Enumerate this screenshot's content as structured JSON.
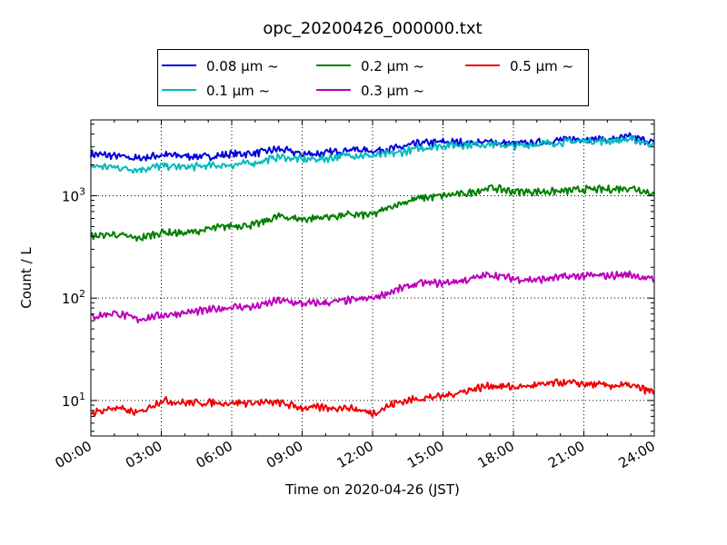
{
  "chart_data": {
    "type": "line",
    "title": "opc_20200426_000000.txt",
    "xlabel": "Time on 2020-04-26 (JST)",
    "ylabel": "Count / L",
    "yscale": "log",
    "ylim": [
      4.5,
      5500
    ],
    "xlim": [
      "00:00",
      "24:00"
    ],
    "x_ticks": [
      "00:00",
      "03:00",
      "06:00",
      "09:00",
      "12:00",
      "15:00",
      "18:00",
      "21:00",
      "24:00"
    ],
    "y_ticks": [
      {
        "value": 10,
        "base": "10",
        "exp": "1"
      },
      {
        "value": 100,
        "base": "10",
        "exp": "2"
      },
      {
        "value": 1000,
        "base": "10",
        "exp": "3"
      }
    ],
    "grid": true,
    "legend_position": "top-center",
    "x": [
      "00:00",
      "01:00",
      "02:00",
      "03:00",
      "04:00",
      "05:00",
      "06:00",
      "07:00",
      "08:00",
      "09:00",
      "10:00",
      "11:00",
      "12:00",
      "13:00",
      "14:00",
      "15:00",
      "16:00",
      "17:00",
      "18:00",
      "19:00",
      "20:00",
      "21:00",
      "22:00",
      "23:00",
      "24:00"
    ],
    "series": [
      {
        "name": "0.08 μm ~",
        "color": "#0000dd",
        "values": [
          2550,
          2450,
          2300,
          2500,
          2450,
          2400,
          2550,
          2600,
          2850,
          2550,
          2600,
          2850,
          2750,
          2900,
          3250,
          3350,
          3300,
          3350,
          3200,
          3300,
          3500,
          3600,
          3500,
          3750,
          3300
        ]
      },
      {
        "name": "0.1 μm ~",
        "color": "#00bbbb",
        "values": [
          1950,
          1900,
          1800,
          1950,
          1900,
          1950,
          2000,
          2100,
          2400,
          2250,
          2300,
          2500,
          2450,
          2600,
          2900,
          3100,
          3150,
          3200,
          3050,
          3200,
          3300,
          3450,
          3400,
          3550,
          3150
        ]
      },
      {
        "name": "0.2 μm ~",
        "color": "#007f00",
        "values": [
          400,
          420,
          380,
          440,
          430,
          470,
          510,
          520,
          630,
          590,
          620,
          650,
          650,
          820,
          950,
          1000,
          1050,
          1200,
          1100,
          1100,
          1100,
          1150,
          1150,
          1200,
          1050
        ]
      },
      {
        "name": "0.3 μm ~",
        "color": "#bb00bb",
        "values": [
          65,
          72,
          62,
          68,
          72,
          76,
          82,
          82,
          95,
          88,
          90,
          95,
          100,
          120,
          140,
          140,
          150,
          170,
          155,
          150,
          160,
          165,
          165,
          170,
          150
        ]
      },
      {
        "name": "0.5 μm ~",
        "color": "#ee0000",
        "values": [
          7.5,
          8.5,
          7.5,
          10,
          9.5,
          9.5,
          9.5,
          9.5,
          9.5,
          8.5,
          8.5,
          8.5,
          7.5,
          9.5,
          10.5,
          11,
          12.5,
          14,
          13.5,
          14,
          15,
          14.5,
          14,
          14,
          12
        ]
      }
    ]
  }
}
